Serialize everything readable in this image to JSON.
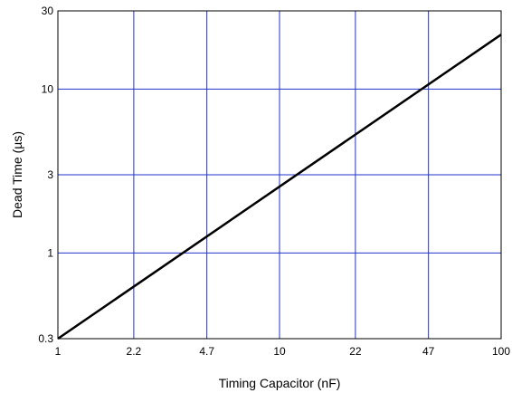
{
  "chart_data": {
    "type": "line",
    "xlabel": "Timing Capacitor (nF)",
    "ylabel": "Dead Time (µs)",
    "x_scale": "log",
    "y_scale": "log",
    "xlim": [
      1,
      100
    ],
    "ylim": [
      0.3,
      30
    ],
    "x_ticks": [
      {
        "value": 1,
        "label": "1"
      },
      {
        "value": 2.2,
        "label": "2.2"
      },
      {
        "value": 4.7,
        "label": "4.7"
      },
      {
        "value": 10,
        "label": "10"
      },
      {
        "value": 22,
        "label": "22"
      },
      {
        "value": 47,
        "label": "47"
      },
      {
        "value": 100,
        "label": "100"
      }
    ],
    "y_ticks": [
      {
        "value": 0.3,
        "label": "0.3"
      },
      {
        "value": 1,
        "label": "1"
      },
      {
        "value": 3,
        "label": "3"
      },
      {
        "value": 10,
        "label": "10"
      },
      {
        "value": 30,
        "label": "30"
      }
    ],
    "grid": true,
    "series": [
      {
        "x": [
          1,
          100
        ],
        "y": [
          0.3,
          21.5
        ]
      }
    ]
  },
  "colors": {
    "grid": "#2233cc",
    "line": "#000000",
    "frame": "#000000",
    "background": "#ffffff"
  }
}
